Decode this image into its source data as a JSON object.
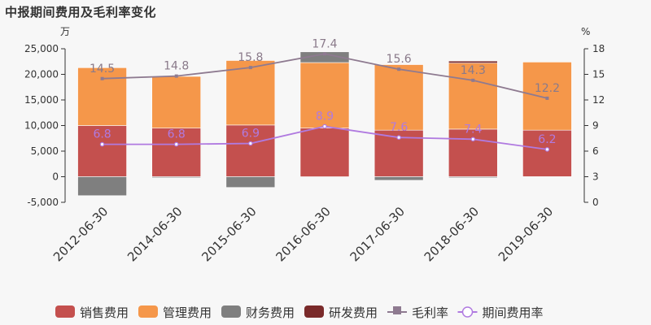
{
  "title": "中报期间费用及毛利率变化",
  "chart_data": {
    "type": "bar",
    "stacked": true,
    "left_unit": "万",
    "right_unit": "%",
    "categories": [
      "2012-06-30",
      "2014-06-30",
      "2015-06-30",
      "2016-06-30",
      "2017-06-30",
      "2018-06-30",
      "2019-06-30"
    ],
    "y_left": {
      "ylim": [
        -5000,
        25000
      ],
      "ticks": [
        -5000,
        0,
        5000,
        10000,
        15000,
        20000,
        25000
      ],
      "tick_labels": [
        "-5,000",
        "0",
        "5,000",
        "10,000",
        "15,000",
        "20,000",
        "25,000"
      ]
    },
    "y_right": {
      "ylim": [
        0,
        18
      ],
      "ticks": [
        0,
        3,
        6,
        9,
        12,
        15,
        18
      ],
      "tick_labels": [
        "0",
        "3",
        "6",
        "9",
        "12",
        "15",
        "18"
      ]
    },
    "series": [
      {
        "name": "销售费用",
        "axis": "left",
        "kind": "bar",
        "color": "#c4504e",
        "values": [
          10000,
          9500,
          10100,
          9500,
          9100,
          9300,
          9100
        ]
      },
      {
        "name": "管理费用",
        "axis": "left",
        "kind": "bar",
        "color": "#f5974a",
        "values": [
          11300,
          10100,
          12600,
          12800,
          12800,
          12900,
          13300
        ]
      },
      {
        "name": "财务费用",
        "axis": "left",
        "kind": "bar",
        "color": "#7f7f7f",
        "values": [
          -3700,
          -200,
          -2100,
          2100,
          -700,
          -200,
          -100
        ]
      },
      {
        "name": "研发费用",
        "axis": "left",
        "kind": "bar",
        "color": "#7a2a2a",
        "values": [
          0,
          0,
          0,
          0,
          0,
          400,
          0
        ]
      },
      {
        "name": "毛利率",
        "axis": "right",
        "kind": "line",
        "color": "#8e7a90",
        "marker": "square",
        "values": [
          14.5,
          14.8,
          15.8,
          17.4,
          15.6,
          14.3,
          12.2
        ],
        "labels": [
          "14.5",
          "14.8",
          "15.8",
          "17.4",
          "15.6",
          "14.3",
          "12.2"
        ]
      },
      {
        "name": "期间费用率",
        "axis": "right",
        "kind": "line",
        "color": "#b07ae0",
        "marker": "circle",
        "values": [
          6.8,
          6.8,
          6.9,
          8.9,
          7.6,
          7.4,
          6.2
        ],
        "labels": [
          "6.8",
          "6.8",
          "6.9",
          "8.9",
          "7.6",
          "7.4",
          "6.2"
        ]
      }
    ],
    "legend_position": "bottom",
    "grid": false
  }
}
